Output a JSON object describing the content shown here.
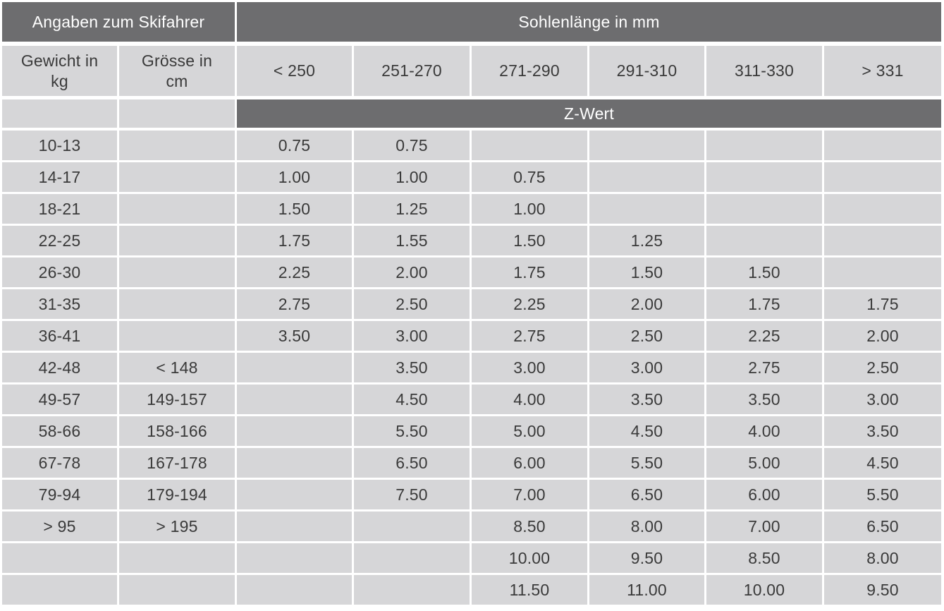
{
  "header": {
    "skier_info": "Angaben zum Skifahrer",
    "sole_length": "Sohlenlänge in mm",
    "weight": "Gewicht in\nkg",
    "height": "Grösse in\ncm",
    "z_value": "Z-Wert"
  },
  "sole_lengths": [
    "< 250",
    "251-270",
    "271-290",
    "291-310",
    "311-330",
    "> 331"
  ],
  "rows": [
    {
      "weight": "10-13",
      "height": "",
      "z": [
        "0.75",
        "0.75",
        "",
        "",
        "",
        ""
      ]
    },
    {
      "weight": "14-17",
      "height": "",
      "z": [
        "1.00",
        "1.00",
        "0.75",
        "",
        "",
        ""
      ]
    },
    {
      "weight": "18-21",
      "height": "",
      "z": [
        "1.50",
        "1.25",
        "1.00",
        "",
        "",
        ""
      ]
    },
    {
      "weight": "22-25",
      "height": "",
      "z": [
        "1.75",
        "1.55",
        "1.50",
        "1.25",
        "",
        ""
      ]
    },
    {
      "weight": "26-30",
      "height": "",
      "z": [
        "2.25",
        "2.00",
        "1.75",
        "1.50",
        "1.50",
        ""
      ]
    },
    {
      "weight": "31-35",
      "height": "",
      "z": [
        "2.75",
        "2.50",
        "2.25",
        "2.00",
        "1.75",
        "1.75"
      ]
    },
    {
      "weight": "36-41",
      "height": "",
      "z": [
        "3.50",
        "3.00",
        "2.75",
        "2.50",
        "2.25",
        "2.00"
      ]
    },
    {
      "weight": "42-48",
      "height": "< 148",
      "z": [
        "",
        "3.50",
        "3.00",
        "3.00",
        "2.75",
        "2.50"
      ]
    },
    {
      "weight": "49-57",
      "height": "149-157",
      "z": [
        "",
        "4.50",
        "4.00",
        "3.50",
        "3.50",
        "3.00"
      ]
    },
    {
      "weight": "58-66",
      "height": "158-166",
      "z": [
        "",
        "5.50",
        "5.00",
        "4.50",
        "4.00",
        "3.50"
      ]
    },
    {
      "weight": "67-78",
      "height": "167-178",
      "z": [
        "",
        "6.50",
        "6.00",
        "5.50",
        "5.00",
        "4.50"
      ]
    },
    {
      "weight": "79-94",
      "height": "179-194",
      "z": [
        "",
        "7.50",
        "7.00",
        "6.50",
        "6.00",
        "5.50"
      ]
    },
    {
      "weight": "> 95",
      "height": "> 195",
      "z": [
        "",
        "",
        "8.50",
        "8.00",
        "7.00",
        "6.50"
      ]
    },
    {
      "weight": "",
      "height": "",
      "z": [
        "",
        "",
        "10.00",
        "9.50",
        "8.50",
        "8.00"
      ]
    },
    {
      "weight": "",
      "height": "",
      "z": [
        "",
        "",
        "11.50",
        "11.00",
        "10.00",
        "9.50"
      ]
    }
  ]
}
